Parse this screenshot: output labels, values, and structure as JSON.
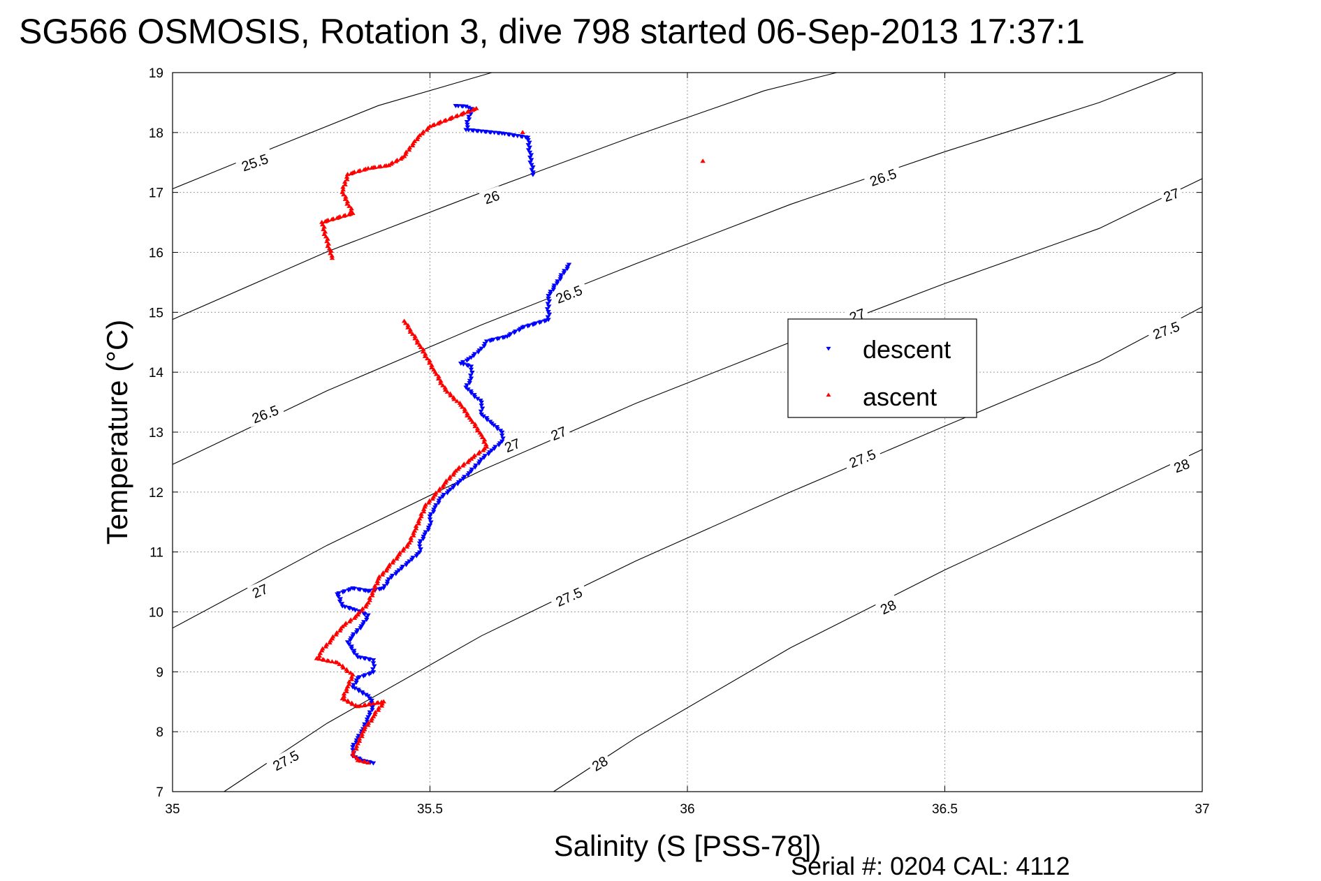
{
  "chart_data": {
    "type": "scatter",
    "title": "SG566 OSMOSIS, Rotation 3, dive 798 started 06-Sep-2013 17:37:1",
    "xlabel": "Salinity (S [PSS-78])",
    "ylabel": "Temperature (°C)",
    "xlim": [
      35,
      37
    ],
    "ylim": [
      7,
      19
    ],
    "xticks": [
      "35",
      "35.5",
      "36",
      "36.5",
      "37"
    ],
    "yticks": [
      "7",
      "8",
      "9",
      "10",
      "11",
      "12",
      "13",
      "14",
      "15",
      "16",
      "17",
      "18",
      "19"
    ],
    "grid": true,
    "legend_position": "right",
    "footer": "Serial #: 0204  CAL: 4112",
    "contours": [
      {
        "level": "25.5",
        "points": [
          [
            35.0,
            17.06
          ],
          [
            35.2,
            17.76
          ],
          [
            35.4,
            18.45
          ],
          [
            35.62,
            19.0
          ]
        ]
      },
      {
        "level": "26",
        "points": [
          [
            35.0,
            14.88
          ],
          [
            35.3,
            16.01
          ],
          [
            35.6,
            17.0
          ],
          [
            35.9,
            17.95
          ],
          [
            36.15,
            18.7
          ],
          [
            36.29,
            19.0
          ]
        ]
      },
      {
        "level": "26.5",
        "points": [
          [
            35.0,
            12.46
          ],
          [
            35.3,
            13.69
          ],
          [
            35.6,
            14.79
          ],
          [
            35.9,
            15.81
          ],
          [
            36.2,
            16.8
          ],
          [
            36.5,
            17.68
          ],
          [
            36.8,
            18.5
          ],
          [
            36.95,
            19.0
          ]
        ]
      },
      {
        "level": "27",
        "points": [
          [
            35.0,
            9.73
          ],
          [
            35.3,
            11.11
          ],
          [
            35.6,
            12.36
          ],
          [
            35.9,
            13.48
          ],
          [
            36.2,
            14.5
          ],
          [
            36.5,
            15.48
          ],
          [
            36.8,
            16.4
          ],
          [
            37.0,
            17.23
          ]
        ]
      },
      {
        "level": "27.5",
        "points": [
          [
            35.1,
            7.0
          ],
          [
            35.3,
            8.14
          ],
          [
            35.6,
            9.6
          ],
          [
            35.9,
            10.85
          ],
          [
            36.2,
            12.0
          ],
          [
            36.5,
            13.1
          ],
          [
            36.8,
            14.18
          ],
          [
            37.0,
            15.09
          ]
        ]
      },
      {
        "level": "28",
        "points": [
          [
            35.74,
            7.0
          ],
          [
            35.9,
            7.9
          ],
          [
            36.2,
            9.4
          ],
          [
            36.5,
            10.7
          ],
          [
            36.8,
            11.9
          ],
          [
            37.0,
            12.71
          ]
        ]
      }
    ],
    "contour_labels": [
      {
        "text": "25.5",
        "x": 35.16,
        "y": 17.5,
        "angle": -19
      },
      {
        "text": "26",
        "x": 35.62,
        "y": 16.92,
        "angle": -19
      },
      {
        "text": "26.5",
        "x": 35.18,
        "y": 13.3,
        "angle": -21
      },
      {
        "text": "26.5",
        "x": 35.77,
        "y": 15.3,
        "angle": -21
      },
      {
        "text": "26.5",
        "x": 36.38,
        "y": 17.25,
        "angle": -19
      },
      {
        "text": "27",
        "x": 35.17,
        "y": 10.35,
        "angle": -23
      },
      {
        "text": "27",
        "x": 35.75,
        "y": 12.98,
        "angle": -22
      },
      {
        "text": "27",
        "x": 35.66,
        "y": 12.78,
        "angle": -22
      },
      {
        "text": "27",
        "x": 36.33,
        "y": 14.95,
        "angle": -20
      },
      {
        "text": "27",
        "x": 36.94,
        "y": 16.96,
        "angle": -19
      },
      {
        "text": "27.5",
        "x": 35.22,
        "y": 7.52,
        "angle": -28
      },
      {
        "text": "27.5",
        "x": 35.77,
        "y": 10.25,
        "angle": -24
      },
      {
        "text": "27.5",
        "x": 36.34,
        "y": 12.56,
        "angle": -22
      },
      {
        "text": "27.5",
        "x": 36.93,
        "y": 14.7,
        "angle": -20
      },
      {
        "text": "28",
        "x": 35.83,
        "y": 7.47,
        "angle": -31
      },
      {
        "text": "28",
        "x": 36.39,
        "y": 10.08,
        "angle": -25
      },
      {
        "text": "28",
        "x": 36.96,
        "y": 12.44,
        "angle": -21
      }
    ],
    "series": [
      {
        "name": "descent",
        "color": "#0000ff",
        "marker": "triangle-down",
        "points": [
          [
            35.55,
            18.45
          ],
          [
            35.57,
            18.44
          ],
          [
            35.58,
            18.4
          ],
          [
            35.57,
            18.05
          ],
          [
            35.64,
            17.99
          ],
          [
            35.69,
            17.92
          ],
          [
            35.7,
            17.3
          ],
          [
            35.77,
            15.8
          ],
          [
            35.73,
            15.28
          ],
          [
            35.73,
            14.88
          ],
          [
            35.68,
            14.75
          ],
          [
            35.65,
            14.6
          ],
          [
            35.61,
            14.52
          ],
          [
            35.6,
            14.4
          ],
          [
            35.58,
            14.25
          ],
          [
            35.56,
            14.15
          ],
          [
            35.58,
            14.1
          ],
          [
            35.58,
            13.9
          ],
          [
            35.57,
            13.75
          ],
          [
            35.6,
            13.5
          ],
          [
            35.6,
            13.3
          ],
          [
            35.62,
            13.15
          ],
          [
            35.64,
            13.0
          ],
          [
            35.64,
            12.85
          ],
          [
            35.62,
            12.7
          ],
          [
            35.6,
            12.55
          ],
          [
            35.58,
            12.35
          ],
          [
            35.56,
            12.2
          ],
          [
            35.54,
            12.05
          ],
          [
            35.52,
            11.9
          ],
          [
            35.51,
            11.75
          ],
          [
            35.5,
            11.6
          ],
          [
            35.5,
            11.45
          ],
          [
            35.49,
            11.3
          ],
          [
            35.48,
            11.15
          ],
          [
            35.48,
            11.0
          ],
          [
            35.46,
            10.85
          ],
          [
            35.44,
            10.7
          ],
          [
            35.42,
            10.55
          ],
          [
            35.41,
            10.4
          ],
          [
            35.38,
            10.35
          ],
          [
            35.35,
            10.4
          ],
          [
            35.32,
            10.3
          ],
          [
            35.33,
            10.1
          ],
          [
            35.35,
            10.05
          ],
          [
            35.38,
            9.95
          ],
          [
            35.37,
            9.8
          ],
          [
            35.35,
            9.6
          ],
          [
            35.34,
            9.5
          ],
          [
            35.36,
            9.25
          ],
          [
            35.39,
            9.2
          ],
          [
            35.39,
            9.0
          ],
          [
            35.36,
            8.9
          ],
          [
            35.35,
            8.75
          ],
          [
            35.38,
            8.6
          ],
          [
            35.39,
            8.45
          ],
          [
            35.38,
            8.25
          ],
          [
            35.37,
            8.05
          ],
          [
            35.36,
            7.9
          ],
          [
            35.35,
            7.75
          ],
          [
            35.35,
            7.6
          ],
          [
            35.37,
            7.52
          ],
          [
            35.39,
            7.48
          ]
        ]
      },
      {
        "name": "ascent",
        "color": "#ff0000",
        "marker": "triangle-up",
        "points": [
          [
            35.59,
            18.4
          ],
          [
            35.5,
            18.1
          ],
          [
            35.48,
            17.95
          ],
          [
            35.47,
            17.85
          ],
          [
            35.45,
            17.6
          ],
          [
            35.42,
            17.45
          ],
          [
            35.38,
            17.4
          ],
          [
            35.34,
            17.3
          ],
          [
            35.33,
            17.0
          ],
          [
            35.35,
            16.65
          ],
          [
            35.29,
            16.5
          ],
          [
            35.31,
            15.9
          ],
          [
            35.68,
            18.0
          ],
          [
            36.03,
            17.52
          ],
          [
            35.45,
            14.85
          ],
          [
            35.48,
            14.45
          ],
          [
            35.51,
            14.0
          ],
          [
            35.53,
            13.7
          ],
          [
            35.56,
            13.45
          ],
          [
            35.58,
            13.2
          ],
          [
            35.6,
            12.95
          ],
          [
            35.61,
            12.75
          ],
          [
            35.58,
            12.55
          ],
          [
            35.55,
            12.35
          ],
          [
            35.53,
            12.15
          ],
          [
            35.51,
            11.95
          ],
          [
            35.49,
            11.75
          ],
          [
            35.48,
            11.55
          ],
          [
            35.47,
            11.35
          ],
          [
            35.46,
            11.15
          ],
          [
            35.44,
            10.95
          ],
          [
            35.42,
            10.75
          ],
          [
            35.4,
            10.55
          ],
          [
            35.39,
            10.35
          ],
          [
            35.38,
            10.15
          ],
          [
            35.36,
            9.95
          ],
          [
            35.33,
            9.75
          ],
          [
            35.31,
            9.55
          ],
          [
            35.29,
            9.35
          ],
          [
            35.28,
            9.22
          ],
          [
            35.32,
            9.15
          ],
          [
            35.35,
            8.95
          ],
          [
            35.34,
            8.75
          ],
          [
            35.33,
            8.55
          ],
          [
            35.36,
            8.42
          ],
          [
            35.41,
            8.5
          ],
          [
            35.39,
            8.25
          ],
          [
            35.37,
            8.0
          ],
          [
            35.36,
            7.8
          ],
          [
            35.35,
            7.62
          ],
          [
            35.36,
            7.52
          ],
          [
            35.38,
            7.48
          ]
        ]
      }
    ]
  }
}
